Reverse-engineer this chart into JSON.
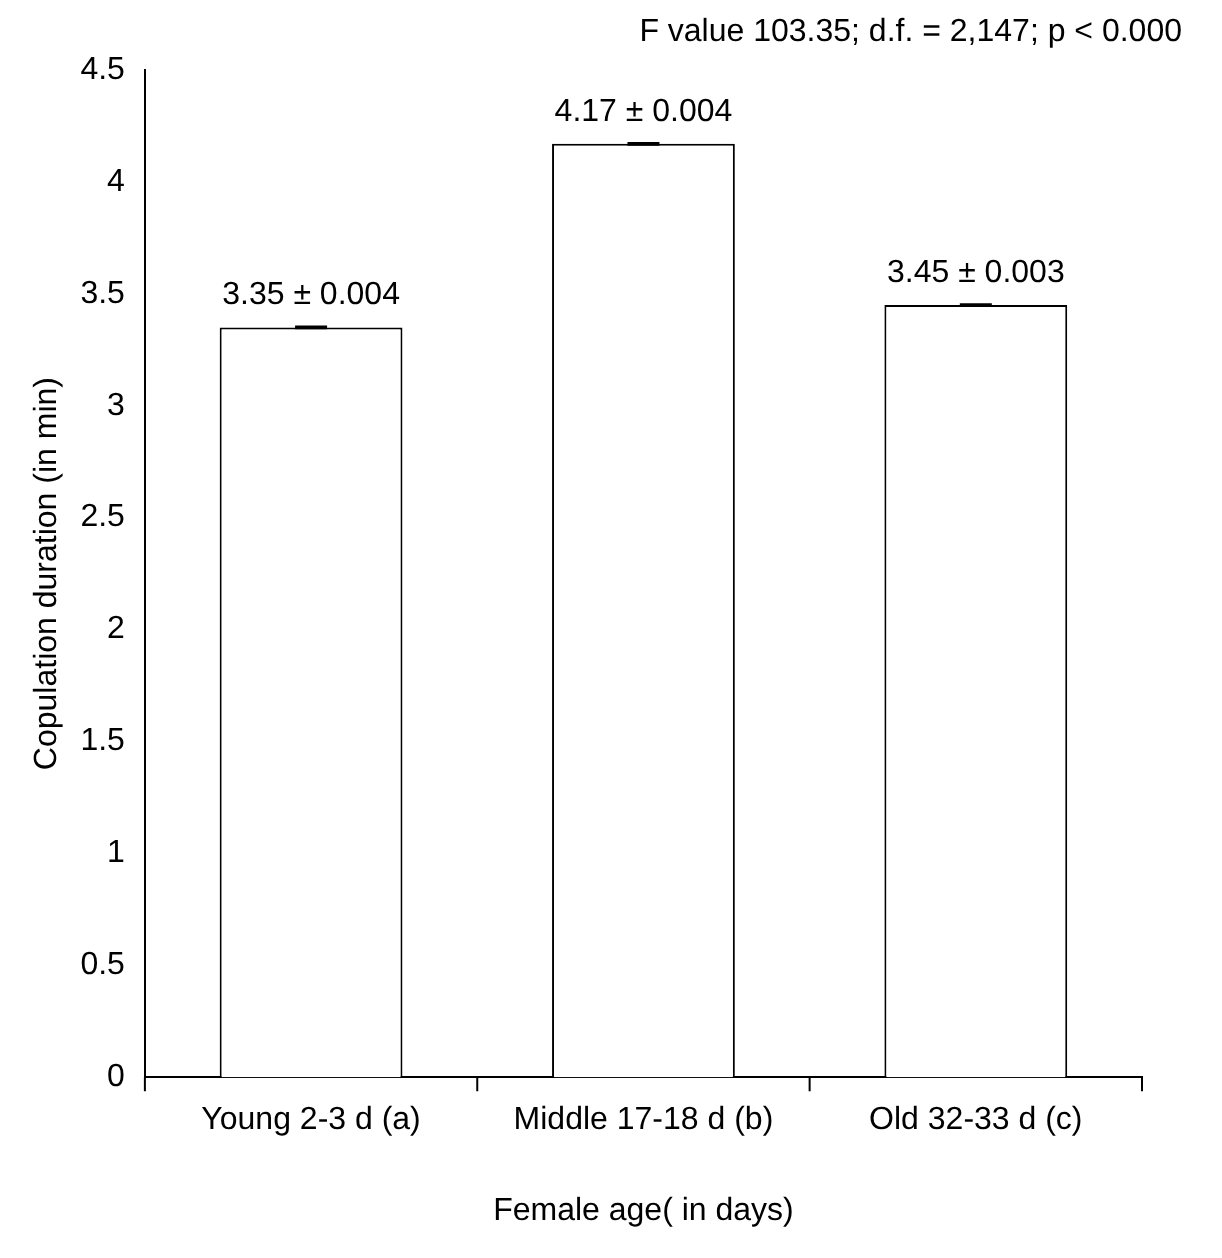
{
  "chart_data": {
    "type": "bar",
    "xlabel": "Female age( in days)",
    "ylabel": "Copulation duration (in min)",
    "annotations": [
      "F value 103.35; d.f. = 2,147; p < 0.000"
    ],
    "categories": [
      "Young 2-3 d (a)",
      "Middle 17-18 d (b)",
      "Old 32-33 d (c)"
    ],
    "values": [
      3.35,
      4.17,
      3.45
    ],
    "errors": [
      0.004,
      0.004,
      0.003
    ],
    "value_labels": [
      "3.35 ± 0.004",
      "4.17 ± 0.004",
      "3.45 ± 0.003"
    ],
    "color": "#ffffff",
    "ylim": [
      0,
      4.5
    ],
    "yticks": [
      0,
      0.5,
      1,
      1.5,
      2,
      2.5,
      3,
      3.5,
      4,
      4.5
    ],
    "grid": false,
    "legend": false
  }
}
